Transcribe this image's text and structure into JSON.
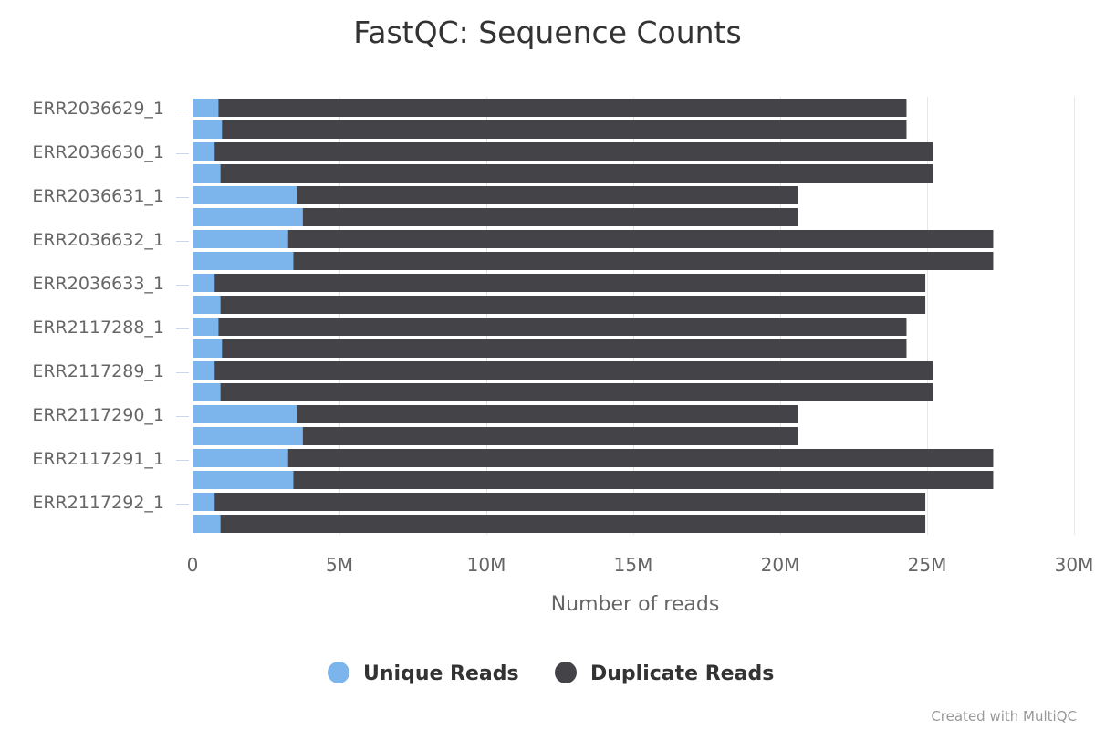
{
  "chart_data": {
    "type": "bar",
    "orientation": "horizontal",
    "stacking": "normal",
    "title": "FastQC: Sequence Counts",
    "xlabel": "Number of reads",
    "xlim": [
      0,
      30000000
    ],
    "xticks": [
      0,
      5000000,
      10000000,
      15000000,
      20000000,
      25000000,
      30000000
    ],
    "xtick_labels": [
      "0",
      "5M",
      "10M",
      "15M",
      "20M",
      "25M",
      "30M"
    ],
    "grid": true,
    "legend_position": "bottom-center",
    "category_labels": [
      "ERR2036629_1",
      "ERR2036630_1",
      "ERR2036631_1",
      "ERR2036632_1",
      "ERR2036633_1",
      "ERR2117288_1",
      "ERR2117289_1",
      "ERR2117290_1",
      "ERR2117291_1",
      "ERR2117292_1"
    ],
    "bars_per_category": 2,
    "series": [
      {
        "name": "Unique Reads",
        "color": "#7cb5ec",
        "values": [
          880000,
          1000000,
          750000,
          950000,
          3550000,
          3750000,
          3250000,
          3430000,
          750000,
          950000,
          880000,
          1000000,
          750000,
          950000,
          3550000,
          3750000,
          3250000,
          3430000,
          750000,
          950000
        ]
      },
      {
        "name": "Duplicate Reads",
        "color": "#434348",
        "values": [
          23420000,
          23300000,
          24450000,
          24250000,
          17050000,
          16850000,
          24000000,
          23820000,
          24190000,
          23990000,
          23420000,
          23300000,
          24450000,
          24250000,
          17050000,
          16850000,
          24000000,
          23820000,
          24190000,
          23990000
        ]
      }
    ]
  },
  "credit": "Created with MultiQC"
}
